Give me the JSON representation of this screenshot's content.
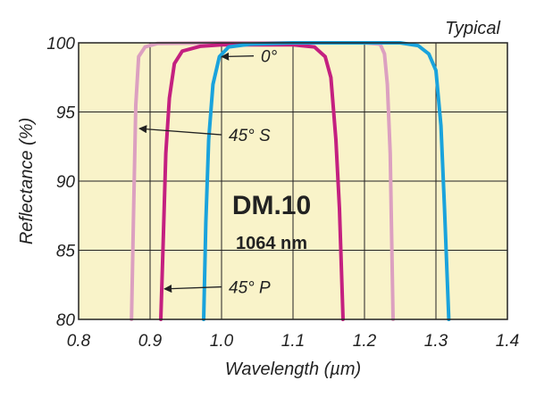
{
  "chart_data": {
    "type": "line",
    "title": "DM.10",
    "subtitle": "1064 nm",
    "corner_note": "Typical",
    "xlabel": "Wavelength (µm)",
    "ylabel": "Reflectance (%)",
    "xlim": [
      0.8,
      1.4
    ],
    "ylim": [
      80,
      100
    ],
    "x_ticks": [
      0.8,
      0.9,
      1.0,
      1.1,
      1.2,
      1.3,
      1.4
    ],
    "x_tick_labels": [
      "0.8",
      "0.9",
      "1.0",
      "1.1",
      "1.2",
      "1.3",
      "1.4"
    ],
    "y_tick_labels": [
      "80",
      "85",
      "90",
      "95",
      "100"
    ],
    "y_tick_positions": [
      80,
      85,
      90,
      95,
      100
    ],
    "grid": true,
    "background_color": "#f9f3c9",
    "series": [
      {
        "name": "45° S",
        "color": "#dca0c0",
        "points": [
          [
            0.874,
            80
          ],
          [
            0.877,
            88
          ],
          [
            0.88,
            95.5
          ],
          [
            0.884,
            99
          ],
          [
            0.893,
            99.7
          ],
          [
            0.91,
            99.95
          ],
          [
            1.0,
            100
          ],
          [
            1.2,
            100
          ],
          [
            1.222,
            99.9
          ],
          [
            1.228,
            99.2
          ],
          [
            1.232,
            97
          ],
          [
            1.236,
            92
          ],
          [
            1.24,
            80
          ]
        ]
      },
      {
        "name": "45° P",
        "color": "#c42080",
        "points": [
          [
            0.915,
            80
          ],
          [
            0.918,
            85
          ],
          [
            0.922,
            92
          ],
          [
            0.927,
            96
          ],
          [
            0.934,
            98.5
          ],
          [
            0.945,
            99.4
          ],
          [
            0.97,
            99.75
          ],
          [
            1.0,
            99.85
          ],
          [
            1.1,
            99.85
          ],
          [
            1.13,
            99.7
          ],
          [
            1.145,
            99
          ],
          [
            1.153,
            97.5
          ],
          [
            1.16,
            93
          ],
          [
            1.165,
            88
          ],
          [
            1.17,
            80
          ]
        ]
      },
      {
        "name": "0°",
        "color": "#1aa3dc",
        "points": [
          [
            0.975,
            80
          ],
          [
            0.978,
            87
          ],
          [
            0.982,
            93
          ],
          [
            0.988,
            97
          ],
          [
            0.997,
            99
          ],
          [
            1.01,
            99.7
          ],
          [
            1.04,
            99.9
          ],
          [
            1.1,
            100
          ],
          [
            1.25,
            100
          ],
          [
            1.275,
            99.8
          ],
          [
            1.29,
            99.2
          ],
          [
            1.3,
            98
          ],
          [
            1.307,
            94
          ],
          [
            1.312,
            88
          ],
          [
            1.318,
            80
          ]
        ]
      }
    ],
    "annotations": [
      {
        "label": "0°",
        "text_x": 1.055,
        "text_y": 98.6,
        "arrow_to": [
          1.0,
          99.0
        ]
      },
      {
        "label": "45° S",
        "text_x": 1.01,
        "text_y": 92.9,
        "arrow_to": [
          0.885,
          93.8
        ]
      },
      {
        "label": "45° P",
        "text_x": 1.01,
        "text_y": 81.9,
        "arrow_to": [
          0.92,
          82.2
        ]
      }
    ]
  }
}
